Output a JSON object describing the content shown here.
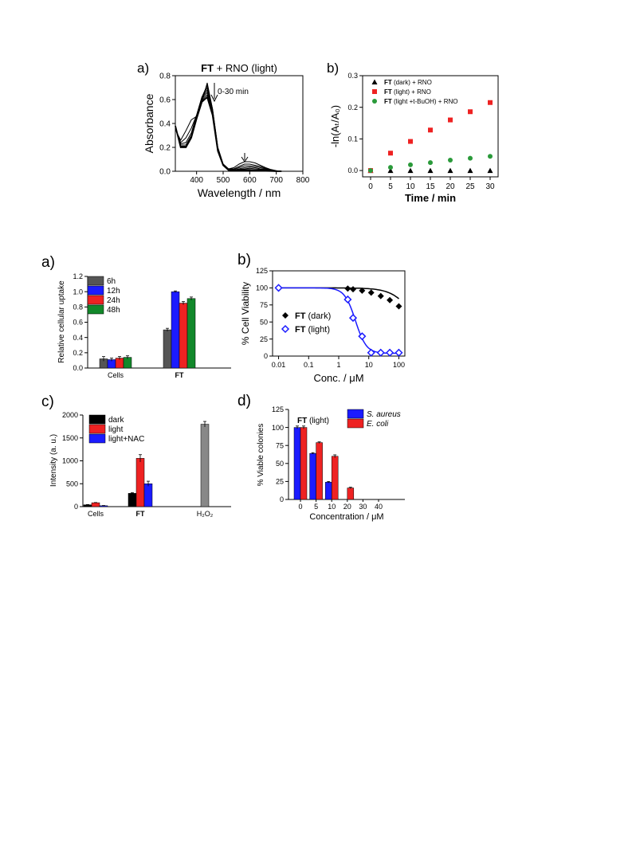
{
  "chart_data": [
    {
      "id": "top_a",
      "panel_label": "a)",
      "type": "line",
      "title_bold": "FT",
      "title_rest": " + RNO (light)",
      "xlabel": "Wavelength / nm",
      "ylabel": "Absorbance",
      "xlim": [
        320,
        800
      ],
      "ylim": [
        0,
        0.8
      ],
      "xticks": [
        400,
        500,
        600,
        700,
        800
      ],
      "yticks": [
        0.0,
        0.2,
        0.4,
        0.6,
        0.8
      ],
      "annotation": "0-30 min",
      "series_x": [
        320,
        340,
        360,
        380,
        400,
        420,
        440,
        460,
        480,
        500,
        520,
        540,
        560,
        580,
        600,
        620,
        640,
        660,
        680,
        700,
        720
      ],
      "series": [
        {
          "values": [
            0.35,
            0.26,
            0.34,
            0.43,
            0.46,
            0.58,
            0.74,
            0.52,
            0.2,
            0.06,
            0.02,
            0.03,
            0.06,
            0.08,
            0.08,
            0.07,
            0.05,
            0.03,
            0.015,
            0.005,
            0.0
          ]
        },
        {
          "values": [
            0.36,
            0.24,
            0.28,
            0.36,
            0.47,
            0.62,
            0.72,
            0.52,
            0.2,
            0.06,
            0.02,
            0.02,
            0.04,
            0.06,
            0.06,
            0.05,
            0.04,
            0.025,
            0.012,
            0.004,
            0.0
          ]
        },
        {
          "values": [
            0.36,
            0.23,
            0.24,
            0.32,
            0.47,
            0.62,
            0.7,
            0.51,
            0.19,
            0.06,
            0.02,
            0.015,
            0.03,
            0.045,
            0.045,
            0.04,
            0.03,
            0.02,
            0.01,
            0.003,
            0.0
          ]
        },
        {
          "values": [
            0.37,
            0.22,
            0.22,
            0.3,
            0.46,
            0.61,
            0.68,
            0.5,
            0.19,
            0.05,
            0.015,
            0.01,
            0.02,
            0.03,
            0.035,
            0.03,
            0.02,
            0.015,
            0.008,
            0.002,
            0.0
          ]
        },
        {
          "values": [
            0.37,
            0.21,
            0.21,
            0.29,
            0.45,
            0.6,
            0.66,
            0.49,
            0.18,
            0.05,
            0.01,
            0.008,
            0.015,
            0.02,
            0.025,
            0.02,
            0.015,
            0.01,
            0.005,
            0.001,
            0.0
          ]
        },
        {
          "values": [
            0.38,
            0.21,
            0.2,
            0.28,
            0.44,
            0.59,
            0.64,
            0.48,
            0.18,
            0.05,
            0.01,
            0.005,
            0.01,
            0.015,
            0.015,
            0.012,
            0.01,
            0.006,
            0.003,
            0.001,
            0.0
          ]
        },
        {
          "values": [
            0.38,
            0.2,
            0.2,
            0.28,
            0.44,
            0.58,
            0.62,
            0.47,
            0.17,
            0.05,
            0.01,
            0.003,
            0.005,
            0.008,
            0.008,
            0.006,
            0.005,
            0.003,
            0.002,
            0.0,
            0.0
          ]
        }
      ]
    },
    {
      "id": "top_b",
      "panel_label": "b)",
      "type": "scatter",
      "xlabel": "Time / min",
      "ylabel": "-ln(Aₜ/A₀)",
      "xlim": [
        -2,
        32
      ],
      "ylim": [
        -0.02,
        0.3
      ],
      "xticks": [
        0,
        5,
        10,
        15,
        20,
        25,
        30
      ],
      "yticks": [
        0.0,
        0.1,
        0.2,
        0.3
      ],
      "x": [
        0,
        5,
        10,
        15,
        20,
        25,
        30
      ],
      "series": [
        {
          "name_bold": "FT",
          "name_rest": " (dark) + RNO",
          "color": "#000000",
          "marker": "triangle",
          "values": [
            0,
            0,
            0,
            0,
            0,
            0,
            0
          ]
        },
        {
          "name_bold": "FT",
          "name_rest": " (light) + RNO",
          "color": "#ee2222",
          "marker": "square",
          "values": [
            0,
            0.055,
            0.092,
            0.128,
            0.16,
            0.186,
            0.215
          ]
        },
        {
          "name_bold": "FT",
          "name_rest": " (light +t-BuOH) + RNO",
          "color": "#2a9a3a",
          "marker": "circle",
          "values": [
            0,
            0.01,
            0.018,
            0.025,
            0.033,
            0.039,
            0.045
          ]
        }
      ]
    },
    {
      "id": "mid_a",
      "panel_label": "a)",
      "type": "bar",
      "ylabel": "Relative cellular uptake",
      "ylim": [
        0,
        1.2
      ],
      "yticks": [
        0.0,
        0.2,
        0.4,
        0.6,
        0.8,
        1.0,
        1.2
      ],
      "categories": [
        "Cells",
        "FT"
      ],
      "categories_bold": [
        false,
        true
      ],
      "series": [
        {
          "name": "6h",
          "color": "#555555",
          "values": [
            0.12,
            0.5
          ],
          "errors": [
            0.03,
            0.02
          ]
        },
        {
          "name": "12h",
          "color": "#1b1bff",
          "values": [
            0.11,
            1.0
          ],
          "errors": [
            0.02,
            0.01
          ]
        },
        {
          "name": "24h",
          "color": "#ee2222",
          "values": [
            0.13,
            0.85
          ],
          "errors": [
            0.02,
            0.02
          ]
        },
        {
          "name": "48h",
          "color": "#12882a",
          "values": [
            0.14,
            0.91
          ],
          "errors": [
            0.02,
            0.02
          ]
        }
      ]
    },
    {
      "id": "mid_b",
      "panel_label": "b)",
      "type": "scatter",
      "xlabel": "Conc. / μM",
      "ylabel": "% Cell Viability",
      "xscale": "log",
      "xlim": [
        0.01,
        100
      ],
      "ylim": [
        0,
        125
      ],
      "xticks": [
        0.01,
        0.1,
        1,
        10,
        100
      ],
      "xtick_labels": [
        "0.01",
        "0.1",
        "1",
        "10",
        "100"
      ],
      "yticks": [
        0,
        25,
        50,
        75,
        100,
        125
      ],
      "series": [
        {
          "name_bold": "FT",
          "name_rest": " (dark)",
          "color": "#000000",
          "marker": "filled-diamond",
          "x": [
            0.01,
            2,
            3,
            6,
            12,
            25,
            50,
            100
          ],
          "values": [
            100,
            99,
            98,
            96,
            93,
            88,
            82,
            73
          ],
          "errors": [
            5,
            2,
            2,
            3,
            3,
            4,
            4,
            4
          ]
        },
        {
          "name_bold": "FT",
          "name_rest": " (light)",
          "color": "#1b1bff",
          "marker": "open-diamond",
          "x": [
            0.01,
            2,
            3,
            6,
            12,
            25,
            50,
            100
          ],
          "values": [
            100,
            83,
            56,
            29,
            5,
            5,
            5,
            5
          ],
          "errors": [
            5,
            3,
            3,
            3,
            1,
            1,
            1,
            1
          ]
        }
      ]
    },
    {
      "id": "mid_c",
      "panel_label": "c)",
      "type": "bar",
      "ylabel": "Intensity (a. u.)",
      "ylim": [
        0,
        2000
      ],
      "yticks": [
        0,
        500,
        1000,
        1500,
        2000
      ],
      "categories": [
        "Cells",
        "FT",
        "H₂O₂"
      ],
      "categories_bold": [
        false,
        true,
        false
      ],
      "series": [
        {
          "name": "dark",
          "color": "#000000",
          "values": [
            40,
            290,
            null
          ],
          "errors": [
            5,
            15,
            null
          ]
        },
        {
          "name": "light",
          "color": "#ee2222",
          "values": [
            85,
            1055,
            null
          ],
          "errors": [
            5,
            80,
            null
          ]
        },
        {
          "name": "light+NAC",
          "color": "#1b1bff",
          "values": [
            20,
            500,
            null
          ],
          "errors": [
            5,
            55,
            null
          ]
        }
      ],
      "extra_bar": {
        "category_index": 2,
        "color": "#888888",
        "value": 1800,
        "error": 60
      }
    },
    {
      "id": "mid_d",
      "panel_label": "d)",
      "type": "bar",
      "title_bold": "FT",
      "title_rest": " (light)",
      "xlabel": "Concentration / μM",
      "ylabel": "% Viable colonies",
      "ylim": [
        0,
        125
      ],
      "yticks": [
        0,
        25,
        50,
        75,
        100,
        125
      ],
      "categories": [
        "0",
        "5",
        "10",
        "20",
        "30",
        "40"
      ],
      "series": [
        {
          "name": "S. aureus",
          "color": "#1b1bff",
          "values": [
            100,
            64,
            24,
            0,
            0,
            0
          ],
          "errors": [
            2,
            1,
            1,
            0,
            0,
            0
          ]
        },
        {
          "name": "E. coli",
          "color": "#ee2222",
          "values": [
            100,
            79,
            60,
            16,
            0,
            0
          ],
          "errors": [
            2,
            1,
            2,
            1,
            0,
            0
          ]
        }
      ]
    }
  ]
}
